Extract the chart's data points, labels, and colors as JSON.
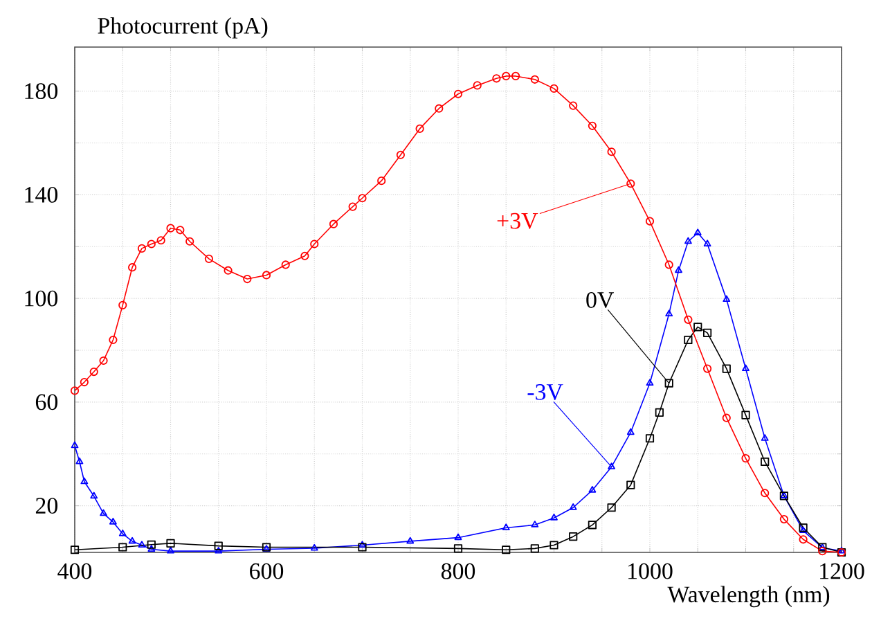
{
  "chart_data": {
    "type": "line",
    "xlabel": "Wavelength (nm)",
    "ylabel": "Photocurrent (pA)",
    "xlim": [
      400,
      1200
    ],
    "ylim": [
      2,
      197
    ],
    "xticks": [
      400,
      {
        "value": 450,
        "label": null
      },
      600,
      {
        "value": 500,
        "label": null
      },
      {
        "value": 550,
        "label": null
      },
      {
        "value": 650,
        "label": null
      },
      {
        "value": 700,
        "label": null
      },
      {
        "value": 750,
        "label": null
      },
      800,
      {
        "value": 850,
        "label": null
      },
      {
        "value": 900,
        "label": null
      },
      {
        "value": 950,
        "label": null
      },
      1000,
      {
        "value": 1050,
        "label": null
      },
      {
        "value": 1100,
        "label": null
      },
      {
        "value": 1150,
        "label": null
      },
      1200
    ],
    "yticks": [
      20,
      {
        "value": 40,
        "label": null
      },
      60,
      {
        "value": 80,
        "label": null
      },
      100,
      {
        "value": 120,
        "label": null
      },
      140,
      {
        "value": 160,
        "label": null
      },
      180
    ],
    "grid": true,
    "annotations": [
      {
        "text": "+3V",
        "x": 980,
        "y": 144.3
      },
      {
        "text": "0V",
        "x": 1020,
        "y": 67.3
      },
      {
        "text": "-3V",
        "x": 960,
        "y": 35
      }
    ],
    "series": [
      {
        "color": "#ff0000",
        "marker": "circle",
        "x": [
          400,
          410,
          420,
          430,
          440,
          450,
          460,
          470,
          480,
          490,
          500,
          510,
          520,
          540,
          560,
          580,
          600,
          620,
          640,
          650,
          670,
          690,
          700,
          720,
          740,
          760,
          780,
          800,
          820,
          840,
          850,
          860,
          880,
          900,
          920,
          940,
          960,
          980,
          1000,
          1020,
          1040,
          1060,
          1080,
          1100,
          1120,
          1140,
          1160,
          1180,
          1200
        ],
        "values": [
          64.4,
          67.7,
          71.7,
          76,
          84,
          97.4,
          112,
          119.3,
          121,
          122.4,
          127.1,
          126.4,
          122,
          115.3,
          110.8,
          107.5,
          109,
          113,
          116.4,
          121,
          128.7,
          135.4,
          138.7,
          145.4,
          155.4,
          165.5,
          173.3,
          178.9,
          182.2,
          184.9,
          185.8,
          185.8,
          184.5,
          181,
          174.4,
          166.6,
          156.6,
          144.3,
          129.8,
          113,
          91.8,
          72.9,
          53.9,
          38.3,
          24.9,
          14.8,
          7,
          2.5,
          2
        ]
      },
      {
        "color": "#000000",
        "marker": "square",
        "x": [
          400,
          450,
          480,
          500,
          550,
          600,
          700,
          800,
          850,
          880,
          900,
          920,
          940,
          960,
          980,
          1000,
          1010,
          1020,
          1040,
          1050,
          1060,
          1080,
          1100,
          1120,
          1140,
          1160,
          1180,
          1200
        ],
        "values": [
          3,
          4,
          5,
          5.5,
          4.5,
          4,
          4,
          3.5,
          3,
          3.5,
          4.8,
          8.1,
          12.6,
          19.3,
          28,
          46,
          56,
          67.3,
          84,
          89,
          86.7,
          72.9,
          55,
          37,
          23.8,
          11.5,
          4,
          2
        ]
      },
      {
        "color": "#0000ff",
        "marker": "triangle",
        "x": [
          400,
          405,
          410,
          420,
          430,
          440,
          450,
          460,
          470,
          480,
          500,
          550,
          600,
          650,
          700,
          750,
          800,
          850,
          880,
          900,
          920,
          940,
          960,
          980,
          1000,
          1020,
          1030,
          1040,
          1050,
          1060,
          1080,
          1100,
          1120,
          1140,
          1160,
          1180,
          1200
        ],
        "values": [
          43.2,
          37,
          29.3,
          23.7,
          17,
          13.7,
          9.2,
          6.3,
          4.8,
          3.2,
          2.5,
          2.5,
          3.2,
          3.6,
          4.8,
          6.3,
          7.7,
          11.5,
          12.6,
          15.3,
          19.3,
          26,
          35,
          48.3,
          67.3,
          94,
          110.8,
          122,
          125.3,
          121,
          99.6,
          72.9,
          46,
          23.8,
          10.4,
          3.8,
          2.5
        ]
      }
    ]
  }
}
